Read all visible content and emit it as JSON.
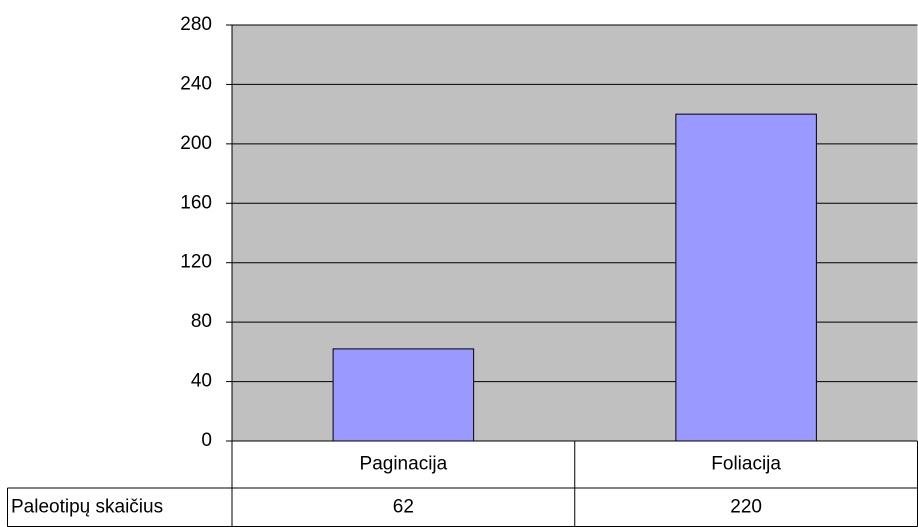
{
  "chart_data": {
    "type": "bar",
    "categories": [
      "Paginacija",
      "Foliacija"
    ],
    "series": [
      {
        "name": "Paleotipų skaičius",
        "color": "#9999ff",
        "values": [
          62,
          220
        ]
      }
    ],
    "ylim": [
      0,
      280
    ],
    "yticks": [
      0,
      40,
      80,
      120,
      160,
      200,
      240,
      280
    ],
    "grid": true,
    "plot_color": "#c0c0c0"
  }
}
